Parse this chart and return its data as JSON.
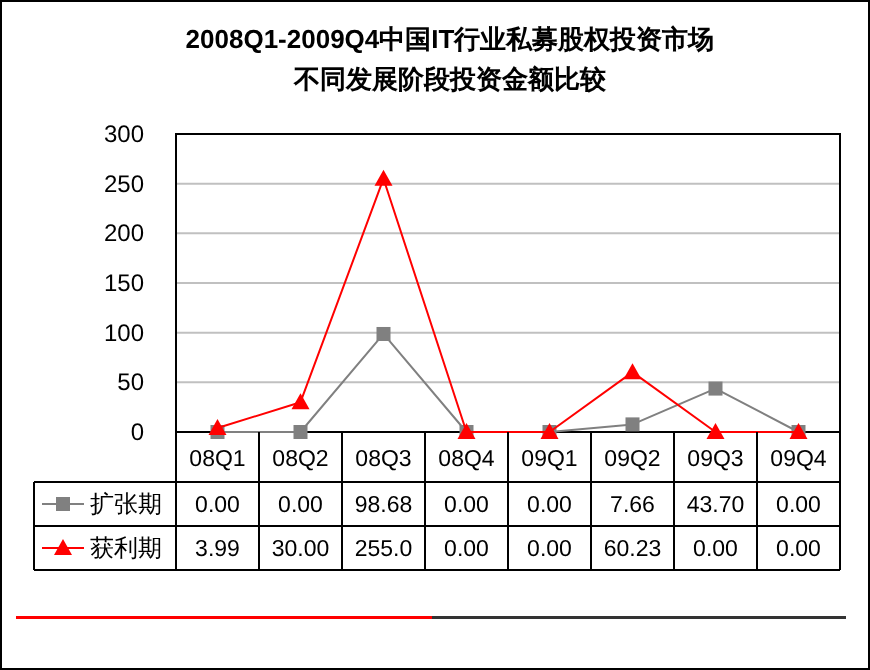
{
  "chart_data": {
    "type": "line",
    "title": "2008Q1-2009Q4中国IT行业私募股权投资市场",
    "subtitle": "不同发展阶段投资金额比较",
    "categories": [
      "08Q1",
      "08Q2",
      "08Q3",
      "08Q4",
      "09Q1",
      "09Q2",
      "09Q3",
      "09Q4"
    ],
    "series": [
      {
        "name": "扩张期",
        "color": "#808080",
        "marker": "square",
        "values": [
          0,
          0,
          98.68,
          0,
          0,
          7.66,
          43.7,
          0
        ],
        "value_labels": [
          "0.00",
          "0.00",
          "98.68",
          "0.00",
          "0.00",
          "7.66",
          "43.70",
          "0.00"
        ]
      },
      {
        "name": "获利期",
        "color": "#ff0000",
        "marker": "triangle",
        "values": [
          3.99,
          30,
          255,
          0,
          0,
          60.23,
          0,
          0
        ],
        "value_labels": [
          "3.99",
          "30.00",
          "255.0",
          "0.00",
          "0.00",
          "60.23",
          "0.00",
          "0.00"
        ]
      }
    ],
    "ylim": [
      0,
      300
    ],
    "yticks": [
      0,
      50,
      100,
      150,
      200,
      250,
      300
    ],
    "grid": "y",
    "legend": "bottom"
  }
}
